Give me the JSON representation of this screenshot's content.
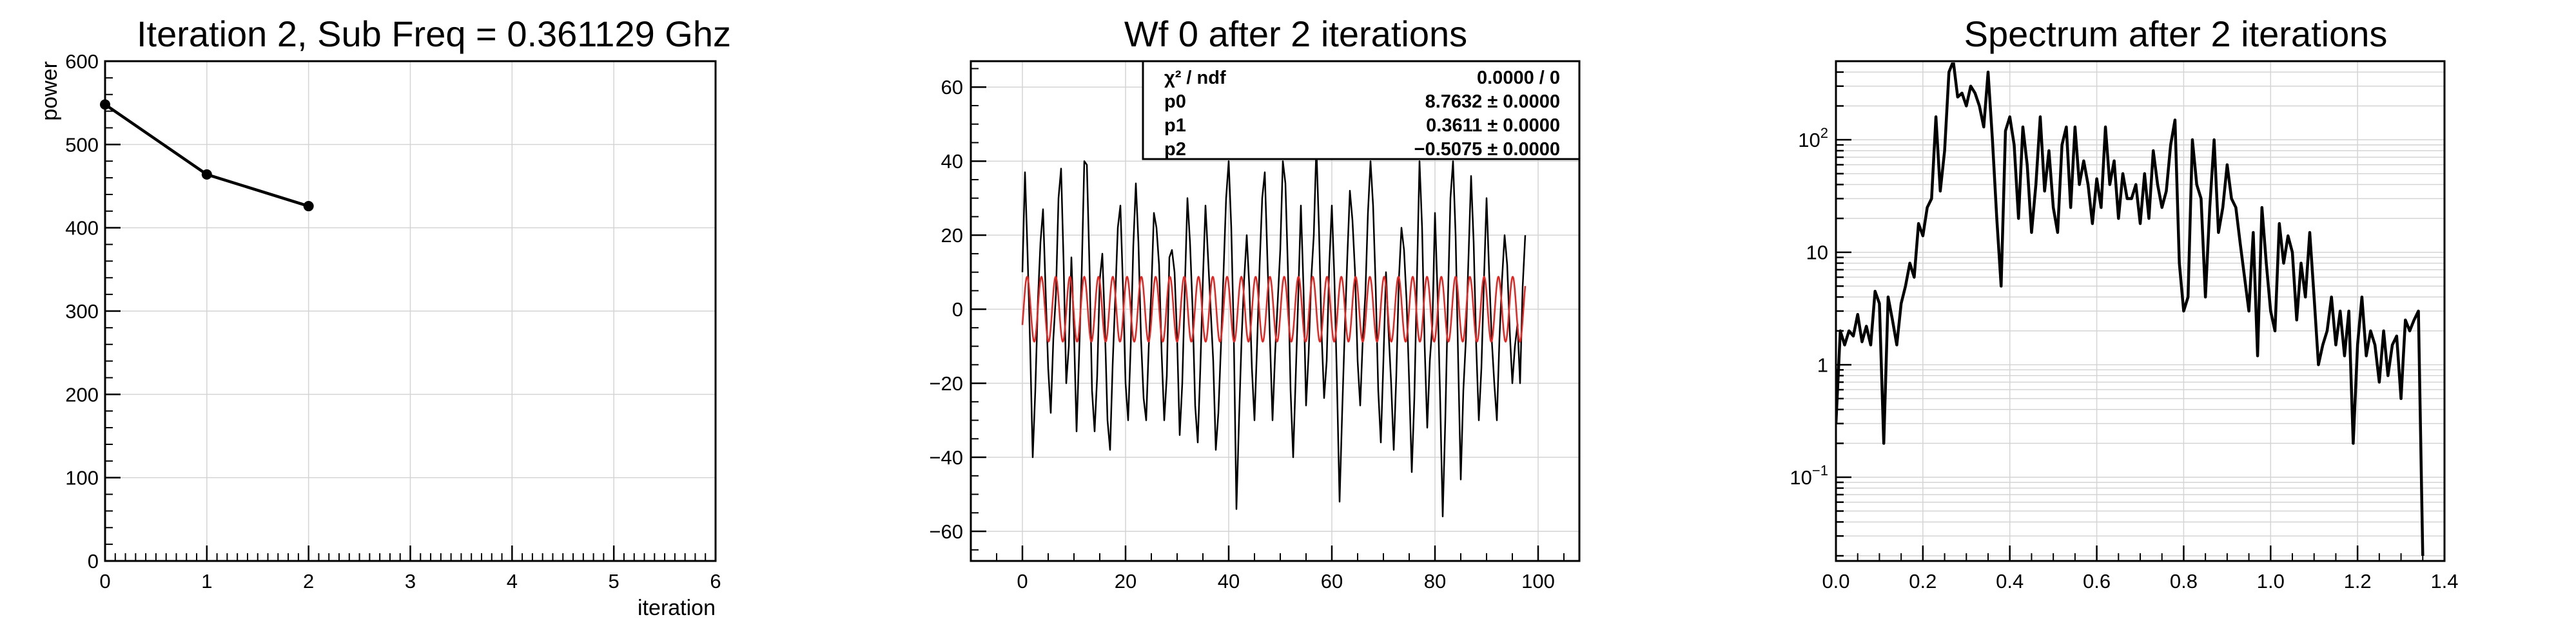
{
  "chart_data": [
    {
      "type": "line",
      "title": "Iteration 2, Sub Freq = 0.361129 Ghz",
      "xlabel": "iteration",
      "ylabel": "power",
      "xlim": [
        0,
        6
      ],
      "ylim": [
        0,
        600
      ],
      "grid": true,
      "x_ticks": [
        "0",
        "1",
        "2",
        "3",
        "4",
        "5",
        "6"
      ],
      "y_ticks": [
        "0",
        "100",
        "200",
        "300",
        "400",
        "500",
        "600"
      ],
      "series": [
        {
          "x": [
            0,
            1,
            2
          ],
          "y": [
            548,
            464,
            426
          ],
          "color": "#000000",
          "markers": true
        }
      ]
    },
    {
      "type": "line",
      "title": "Wf 0 after 2 iterations",
      "xlabel": "",
      "ylabel": "",
      "xlim": [
        -10,
        108
      ],
      "ylim": [
        -68,
        67
      ],
      "grid": true,
      "x_ticks": [
        "0",
        "20",
        "40",
        "60",
        "80",
        "100"
      ],
      "y_ticks": [
        "−60",
        "−40",
        "−20",
        "0",
        "20",
        "40",
        "60"
      ],
      "series": [
        {
          "color": "#000000",
          "x0": 0,
          "dx": 0.5,
          "y": [
            10,
            37,
            15,
            -10,
            -40,
            -22,
            2,
            18,
            27,
            5,
            -16,
            -28,
            -8,
            4,
            30,
            38,
            12,
            -20,
            -10,
            14,
            -6,
            -33,
            -12,
            10,
            40,
            39,
            12,
            -22,
            -33,
            -18,
            8,
            15,
            -5,
            -30,
            -38,
            -15,
            3,
            22,
            28,
            6,
            -20,
            -30,
            -10,
            17,
            34,
            18,
            -8,
            -24,
            -30,
            -10,
            5,
            26,
            22,
            12,
            -12,
            -30,
            -18,
            14,
            16,
            10,
            -8,
            -34,
            -20,
            6,
            30,
            18,
            0,
            -26,
            -36,
            -16,
            8,
            28,
            14,
            0,
            -14,
            -38,
            -28,
            -10,
            10,
            30,
            40,
            22,
            -8,
            -54,
            -30,
            -8,
            8,
            20,
            6,
            -16,
            -30,
            -10,
            12,
            30,
            37,
            14,
            -8,
            -30,
            -12,
            2,
            16,
            40,
            34,
            10,
            -22,
            -40,
            -18,
            4,
            28,
            6,
            -26,
            -12,
            8,
            20,
            44,
            22,
            -6,
            -24,
            -14,
            12,
            28,
            8,
            -20,
            -52,
            -28,
            -6,
            14,
            32,
            24,
            10,
            -14,
            -26,
            -8,
            4,
            26,
            40,
            28,
            6,
            -22,
            -36,
            -14,
            10,
            -6,
            -20,
            -38,
            -18,
            8,
            22,
            16,
            2,
            -20,
            -44,
            -24,
            8,
            40,
            22,
            -10,
            -32,
            -14,
            -4,
            26,
            4,
            -24,
            -56,
            -30,
            2,
            30,
            40,
            20,
            -14,
            -46,
            -22,
            -8,
            14,
            36,
            18,
            -10,
            -30,
            -16,
            8,
            30,
            10,
            -8,
            -20,
            -30,
            -8,
            8,
            20,
            12,
            -6,
            -20,
            -10,
            -4,
            -20,
            6,
            20
          ]
        },
        {
          "color": "#e8231f",
          "fit": "p0*sin(2*pi*p1*x + p2)",
          "x0": 0,
          "x1": 97.5,
          "params": {
            "p0": 8.7632,
            "p1": 0.3611,
            "p2": -0.5075
          }
        }
      ],
      "stats_box": {
        "rows": [
          {
            "name": "χ² / ndf",
            "value": "0.0000 / 0",
            "error": ""
          },
          {
            "name": "p0",
            "value": "8.7632",
            "error": "± 0.0000"
          },
          {
            "name": "p1",
            "value": "0.3611",
            "error": "± 0.0000"
          },
          {
            "name": "p2",
            "value": "−0.5075",
            "error": "± 0.0000"
          }
        ]
      }
    },
    {
      "type": "line",
      "title": "Spectrum after 2 iterations",
      "xlabel": "",
      "ylabel": "",
      "xlim": [
        0,
        1.4
      ],
      "ylim": [
        0.018,
        500
      ],
      "log_y": true,
      "grid": true,
      "x_ticks": [
        "0.0",
        "0.2",
        "0.4",
        "0.6",
        "0.8",
        "1.0",
        "1.2",
        "1.4"
      ],
      "y_ticks": [
        {
          "base": "10",
          "exp": "−1",
          "value": 0.1
        },
        {
          "base": "1",
          "exp": "",
          "value": 1
        },
        {
          "base": "10",
          "exp": "",
          "value": 10
        },
        {
          "base": "10",
          "exp": "2",
          "value": 100
        }
      ],
      "series": [
        {
          "color": "#000000",
          "x0": 0.0,
          "dx": 0.01,
          "y": [
            0.3,
            2,
            1.5,
            2,
            1.8,
            2.8,
            1.6,
            2.2,
            1.5,
            4.5,
            3.5,
            0.2,
            4,
            2.5,
            1.5,
            3.5,
            5,
            8,
            6,
            18,
            14,
            25,
            30,
            160,
            35,
            80,
            400,
            500,
            240,
            260,
            200,
            300,
            260,
            200,
            130,
            400,
            100,
            20,
            5,
            120,
            160,
            90,
            20,
            130,
            60,
            15,
            40,
            160,
            35,
            80,
            25,
            15,
            90,
            130,
            25,
            130,
            40,
            65,
            40,
            18,
            45,
            25,
            130,
            40,
            65,
            20,
            50,
            30,
            30,
            40,
            18,
            50,
            20,
            80,
            40,
            25,
            35,
            90,
            150,
            8,
            3,
            4,
            100,
            40,
            30,
            4,
            25,
            100,
            15,
            25,
            60,
            30,
            25,
            12,
            6,
            3,
            15,
            1.2,
            25,
            8,
            3,
            2,
            18,
            8,
            14,
            10,
            2.5,
            8,
            4,
            15,
            4,
            1,
            1.5,
            2,
            4,
            1.5,
            3,
            1.2,
            3,
            0.2,
            1.5,
            4,
            1.2,
            2,
            1.5,
            0.7,
            2,
            0.8,
            1.5,
            1.8,
            0.5,
            2.5,
            2,
            2.5,
            3,
            0.02
          ]
        }
      ]
    }
  ]
}
